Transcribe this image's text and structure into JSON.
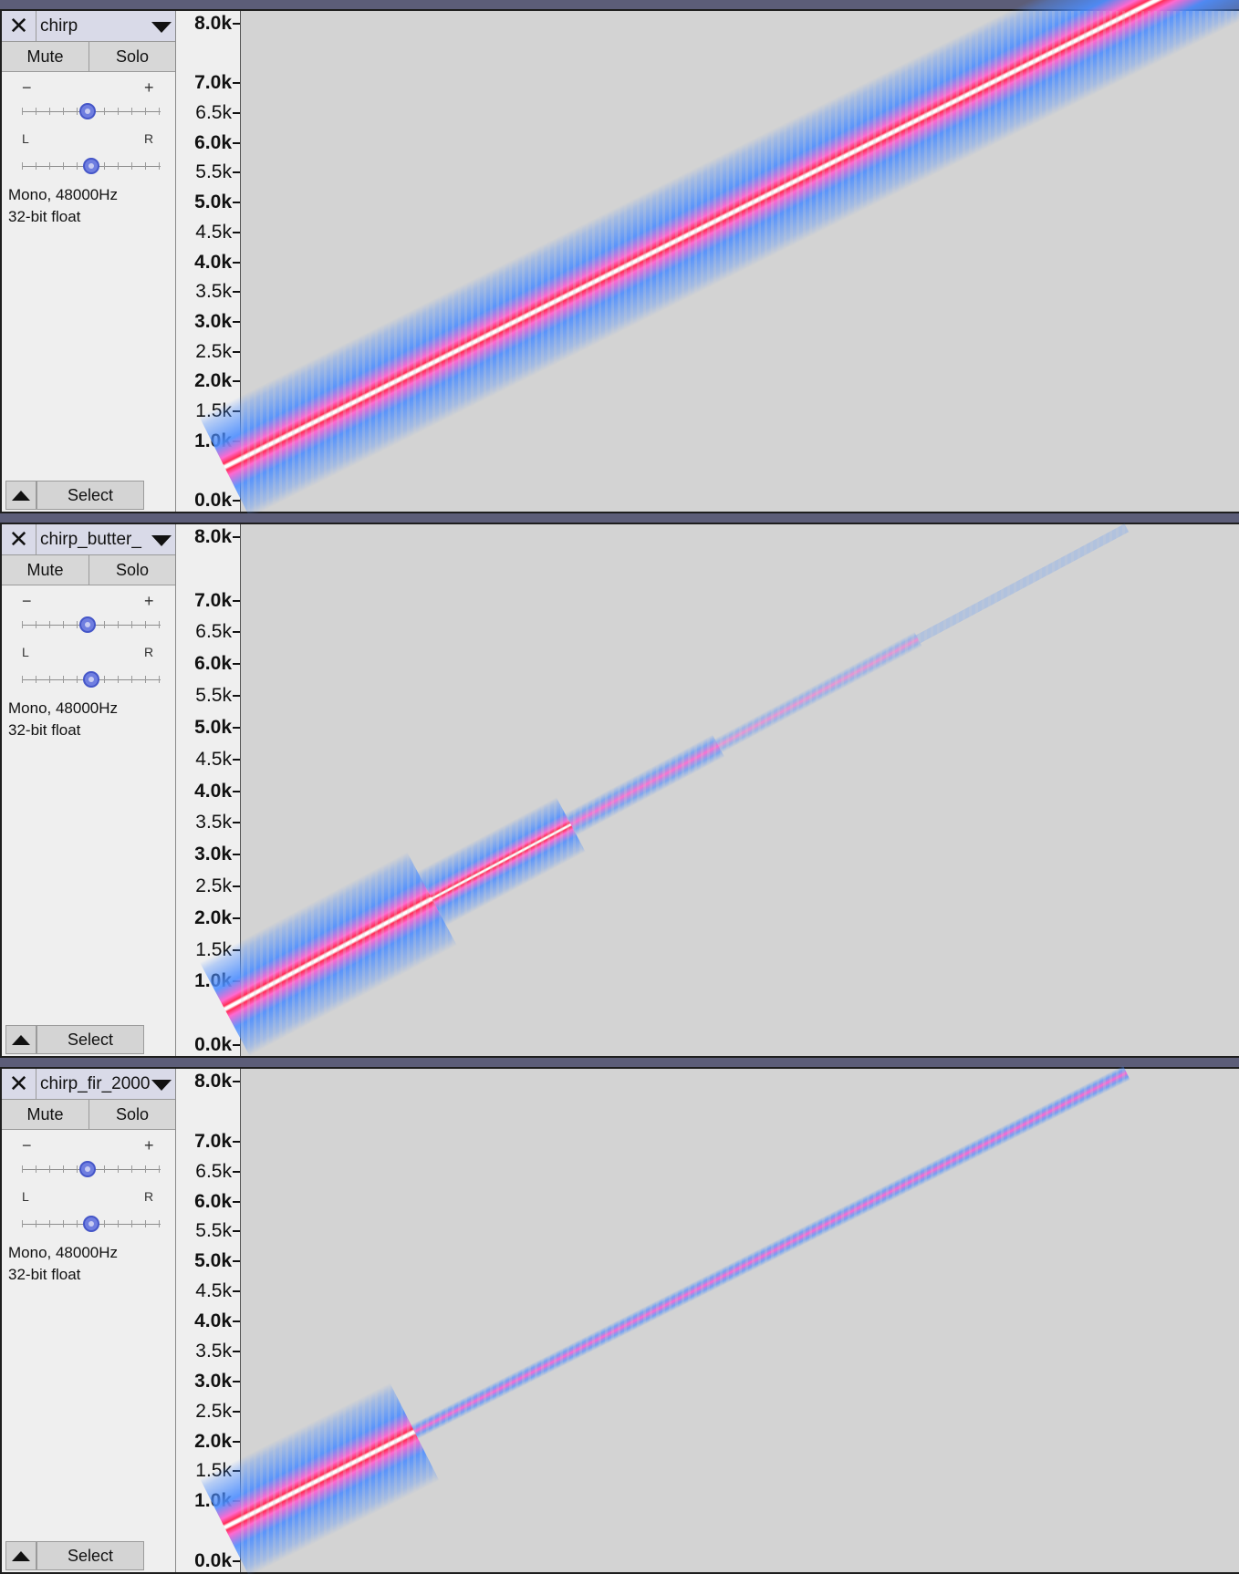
{
  "common": {
    "mute_label": "Mute",
    "solo_label": "Solo",
    "gain_minus": "−",
    "gain_plus": "+",
    "pan_left": "L",
    "pan_right": "R",
    "select_label": "Select",
    "close_glyph": "✕",
    "format_line1": "Mono, 48000Hz",
    "format_line2": "32-bit float"
  },
  "colors": {
    "header_bar": "#5c5d78",
    "spectrogram_bg": "#d3d3d3",
    "band_core": "#ffffff",
    "band_red": "#ff2d55",
    "band_pink": "#ff69d0",
    "band_blue": "#4d8eff",
    "slider_thumb": "#6f7ee0"
  },
  "freq_ticks": [
    {
      "label": "8.0k",
      "value": 8000
    },
    {
      "label": "7.0k",
      "value": 7000
    },
    {
      "label": "6.5k",
      "value": 6500
    },
    {
      "label": "6.0k",
      "value": 6000
    },
    {
      "label": "5.5k",
      "value": 5500
    },
    {
      "label": "5.0k",
      "value": 5000
    },
    {
      "label": "4.5k",
      "value": 4500
    },
    {
      "label": "4.0k",
      "value": 4000
    },
    {
      "label": "3.5k",
      "value": 3500
    },
    {
      "label": "3.0k",
      "value": 3000
    },
    {
      "label": "2.5k",
      "value": 2500
    },
    {
      "label": "2.0k",
      "value": 2000
    },
    {
      "label": "1.5k",
      "value": 1500
    },
    {
      "label": "1.0k",
      "value": 1000
    },
    {
      "label": "0.0k",
      "value": 0
    }
  ],
  "tracks": [
    {
      "name": "chirp",
      "gain_level": 0.47,
      "pan_level": 0.5,
      "sweep": {
        "start_hz": 700,
        "end_hz": 8000,
        "time_fraction_at_end": 0.87
      },
      "style": "full"
    },
    {
      "name": "chirp_butter_",
      "gain_level": 0.47,
      "pan_level": 0.5,
      "sweep": {
        "start_hz": 700,
        "end_hz": 8000,
        "time_fraction_at_end": 0.87
      },
      "style": "butter"
    },
    {
      "name": "chirp_fir_2000",
      "gain_level": 0.47,
      "pan_level": 0.5,
      "sweep": {
        "start_hz": 700,
        "end_hz": 8000,
        "time_fraction_at_end": 0.87
      },
      "style": "fir"
    }
  ]
}
